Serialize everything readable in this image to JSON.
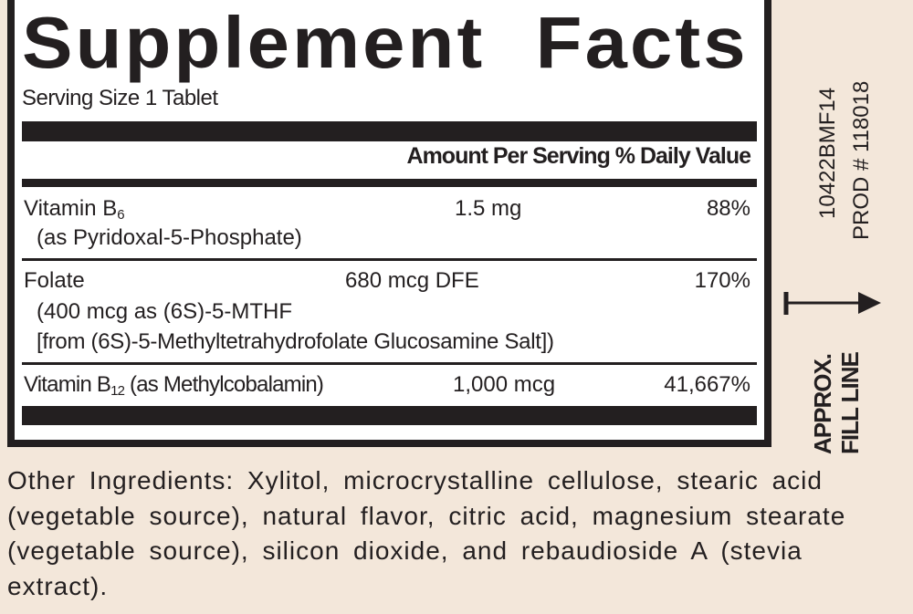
{
  "panel": {
    "title": "Supplement Facts",
    "serving_size": "Serving Size 1 Tablet",
    "header": {
      "amount": "Amount Per Serving",
      "daily_value": "% Daily Value"
    },
    "rows": [
      {
        "name": "Vitamin B",
        "sub": "6",
        "detail": "(as Pyridoxal-5-Phosphate)",
        "amount": "1.5 mg",
        "dv": "88%"
      },
      {
        "name": "Folate",
        "detail1": "(400 mcg as (6S)-5-MTHF",
        "detail2": "[from (6S)-5-Methyltetrahydrofolate Glucosamine Salt])",
        "amount": "680 mcg DFE",
        "dv": "170%"
      },
      {
        "name": "Vitamin B",
        "sub": "12",
        "detail": " (as Methylcobalamin)",
        "amount": "1,000 mcg",
        "dv": "41,667%"
      }
    ]
  },
  "other_ingredients": "Other Ingredients: Xylitol, microcrystalline cellulose, stearic acid (vegetable source), natural flavor, citric acid, magnesium stearate (vegetable source), silicon dioxide, and rebaudioside A (stevia extract).",
  "side": {
    "lot_code": "10422BMF14",
    "product_number": "PROD # 118018",
    "fill_line_1": "APPROX.",
    "fill_line_2": "FILL LINE"
  }
}
